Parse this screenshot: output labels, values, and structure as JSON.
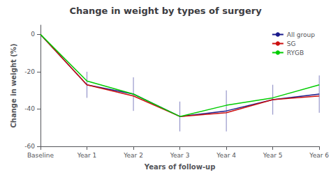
{
  "chart_data": {
    "type": "line",
    "title": "Change in weight by types of surgery",
    "xlabel": "Years of follow-up",
    "ylabel": "Change in weight (%)",
    "categories": [
      "Baseline",
      "Year 1",
      "Year 2",
      "Year 3",
      "Year 4",
      "Year 5",
      "Year 6"
    ],
    "series": [
      {
        "name": "All group",
        "color": "#1a1a8c",
        "values": [
          0,
          -27,
          -32,
          -44,
          -41,
          -35,
          -32
        ],
        "errors": [
          0,
          7,
          9,
          8,
          11,
          8,
          10
        ]
      },
      {
        "name": "SG",
        "color": "#cc1010",
        "values": [
          0,
          -27,
          -33,
          -44,
          -42,
          -35,
          -33
        ]
      },
      {
        "name": "RYGB",
        "color": "#00cc00",
        "values": [
          0,
          -25,
          -32,
          -44,
          -38,
          -34,
          -27
        ]
      }
    ],
    "ylim": [
      -60,
      5
    ],
    "yticks": [
      0,
      -20,
      -40,
      -60
    ],
    "grid": false,
    "legend": "upper right"
  }
}
